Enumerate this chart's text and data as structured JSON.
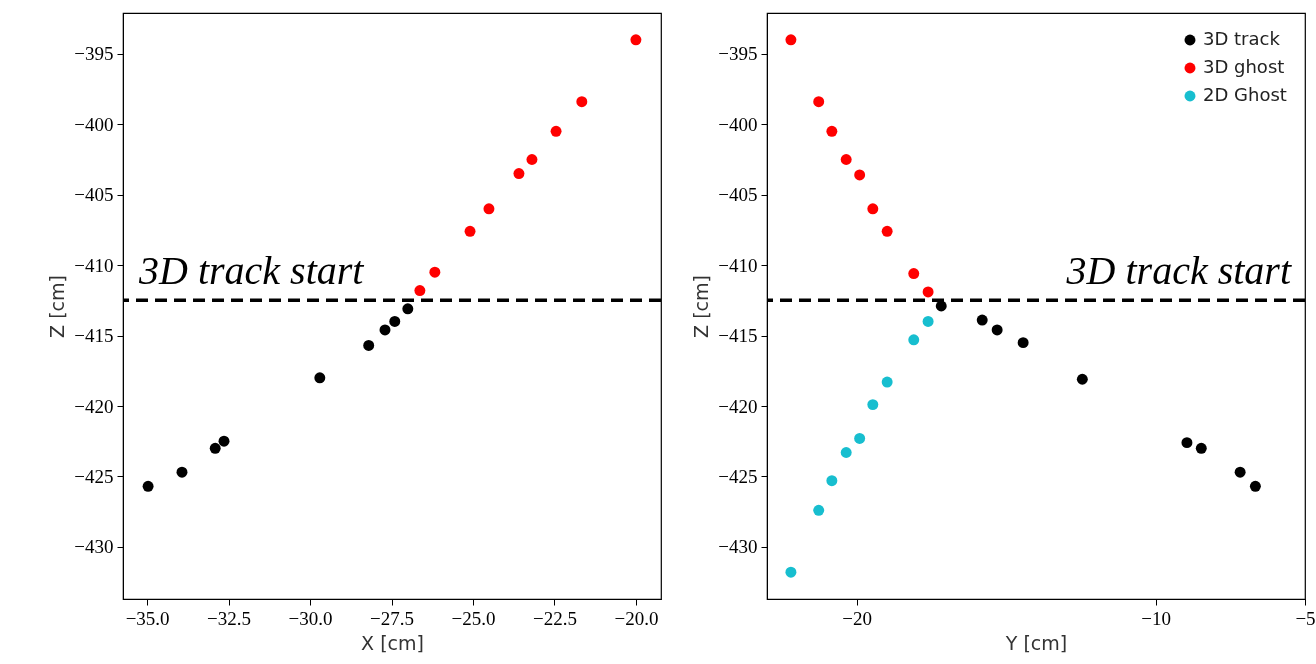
{
  "chart_data": [
    {
      "type": "scatter",
      "xlabel": "X [cm]",
      "ylabel": "Z [cm]",
      "marker": "circle",
      "xlim": [
        -35.74,
        -19.23
      ],
      "ylim": [
        -433.7,
        -392.1
      ],
      "xticks": [
        {
          "value": -35,
          "label": "−35.0"
        },
        {
          "value": -32.5,
          "label": "−32.5"
        },
        {
          "value": -30,
          "label": "−30.0"
        },
        {
          "value": -27.5,
          "label": "−27.5"
        },
        {
          "value": -25,
          "label": "−25.0"
        },
        {
          "value": -22.5,
          "label": "−22.5"
        },
        {
          "value": -20,
          "label": "−20.0"
        }
      ],
      "yticks": [
        {
          "value": -395,
          "label": "−395"
        },
        {
          "value": -400,
          "label": "−400"
        },
        {
          "value": -405,
          "label": "−405"
        },
        {
          "value": -410,
          "label": "−410"
        },
        {
          "value": -415,
          "label": "−415"
        },
        {
          "value": -420,
          "label": "−420"
        },
        {
          "value": -425,
          "label": "−425"
        },
        {
          "value": -430,
          "label": "−430"
        }
      ],
      "ref_lines": [
        {
          "axis": "y",
          "value": -412.5,
          "label": "3D track start",
          "color": "#000000",
          "line_style": "dashed"
        }
      ],
      "series": [
        {
          "color": "#000000",
          "x": [
            -34.97,
            -33.93,
            -32.91,
            -32.64,
            -29.7,
            -28.2,
            -27.7,
            -27.4,
            -27.0
          ],
          "values": [
            -425.7,
            -424.7,
            -423.0,
            -422.5,
            -418.0,
            -415.7,
            -414.6,
            -414.0,
            -413.1
          ]
        },
        {
          "color": "#ff0000",
          "x": [
            -20.0,
            -21.66,
            -22.45,
            -23.19,
            -23.59,
            -24.51,
            -25.09,
            -26.17,
            -26.63
          ],
          "values": [
            -394.0,
            -398.4,
            -400.5,
            -402.5,
            -403.5,
            -406.0,
            -407.6,
            -410.5,
            -411.8
          ]
        }
      ]
    },
    {
      "type": "scatter",
      "xlabel": "Y [cm]",
      "ylabel": "Z [cm]",
      "marker": "circle",
      "legend": "top right",
      "xlim": [
        -23.0,
        -5.0
      ],
      "ylim": [
        -433.7,
        -392.1
      ],
      "xticks": [
        {
          "value": -20,
          "label": "−20"
        },
        {
          "value": -10,
          "label": "−10"
        },
        {
          "value": -5,
          "label": "−5"
        }
      ],
      "yticks": [
        {
          "value": -395,
          "label": "−395"
        },
        {
          "value": -400,
          "label": "−400"
        },
        {
          "value": -405,
          "label": "−405"
        },
        {
          "value": -410,
          "label": "−410"
        },
        {
          "value": -415,
          "label": "−415"
        },
        {
          "value": -420,
          "label": "−420"
        },
        {
          "value": -425,
          "label": "−425"
        },
        {
          "value": -430,
          "label": "−430"
        }
      ],
      "ref_lines": [
        {
          "axis": "y",
          "value": -412.5,
          "label": "3D track start",
          "color": "#000000",
          "line_style": "dashed"
        }
      ],
      "series": [
        {
          "name": "3D track",
          "color": "#000000",
          "x": [
            -17.17,
            -15.8,
            -15.3,
            -14.43,
            -12.45,
            -8.95,
            -8.47,
            -7.17,
            -6.66
          ],
          "values": [
            -412.9,
            -413.9,
            -414.6,
            -415.5,
            -418.1,
            -422.6,
            -423.0,
            -424.7,
            -425.7
          ]
        },
        {
          "name": "3D ghost",
          "color": "#ff0000",
          "x": [
            -22.2,
            -21.27,
            -20.83,
            -20.35,
            -19.9,
            -19.46,
            -18.98,
            -18.09,
            -17.61
          ],
          "values": [
            -394.0,
            -398.4,
            -400.5,
            -402.5,
            -403.6,
            -406.0,
            -407.6,
            -410.6,
            -411.9
          ]
        },
        {
          "name": "2D Ghost",
          "color": "#17becf",
          "x": [
            -22.2,
            -21.27,
            -20.83,
            -20.35,
            -19.9,
            -19.46,
            -18.98,
            -18.09,
            -17.61
          ],
          "values": [
            -431.8,
            -427.4,
            -425.3,
            -423.3,
            -422.3,
            -419.9,
            -418.3,
            -415.3,
            -414.0
          ]
        }
      ]
    }
  ]
}
